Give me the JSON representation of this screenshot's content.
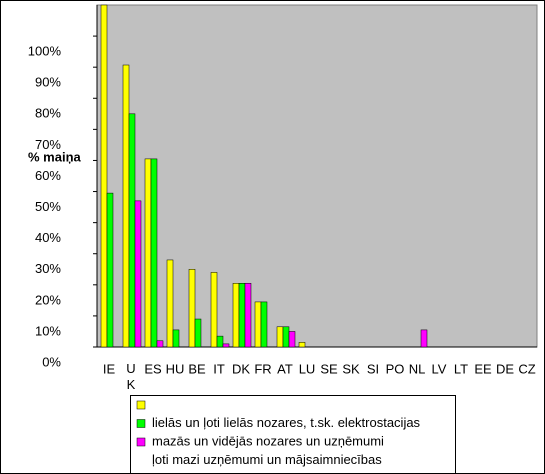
{
  "chart_data": {
    "type": "bar",
    "y_label": "% maiņa",
    "categories": [
      "IE",
      "U K",
      "ES",
      "HU",
      "BE",
      "IT",
      "DK",
      "FR",
      "AT",
      "LU",
      "SE",
      "SK",
      "SI",
      "PO",
      "NL",
      "LV",
      "LT",
      "EE",
      "DE",
      "CZ"
    ],
    "series": [
      {
        "name": null,
        "color": "#ffff00",
        "values": [
          110,
          90.7,
          60.5,
          28,
          25,
          24,
          20.5,
          14.5,
          6.5,
          1.5,
          null,
          null,
          null,
          null,
          null,
          null,
          null,
          null,
          null,
          null
        ]
      },
      {
        "name": "lielās un ļoti lielās nozares, t.sk. elektrostacijas",
        "color": "#00ff00",
        "values": [
          49.5,
          75,
          60.5,
          5.5,
          9,
          3.5,
          20.5,
          14.5,
          6.5,
          null,
          null,
          null,
          null,
          null,
          null,
          null,
          null,
          null,
          null,
          null
        ]
      },
      {
        "name": "mazās un vidējās nozares un uzņēmumi",
        "color": "#ff00ff",
        "values": [
          null,
          47,
          2,
          null,
          null,
          1,
          20.5,
          null,
          5,
          null,
          null,
          null,
          null,
          null,
          5.5,
          null,
          null,
          null,
          null,
          null
        ]
      }
    ],
    "legend_extra": "ļoti mazi uzņēmumi un mājsaimniecības",
    "ylim": [
      0,
      110
    ],
    "yticks": [
      {
        "value": 0,
        "label": "0%"
      },
      {
        "value": 10,
        "label": "10%"
      },
      {
        "value": 20,
        "label": "20%"
      },
      {
        "value": 30,
        "label": "30%"
      },
      {
        "value": 40,
        "label": "40%"
      },
      {
        "value": 50,
        "label": "50%"
      },
      {
        "value": 60,
        "label": "60%"
      },
      {
        "value": 70,
        "label": "70%"
      },
      {
        "value": 80,
        "label": "80%"
      },
      {
        "value": 90,
        "label": "90%"
      },
      {
        "value": 100,
        "label": "100%"
      }
    ],
    "plot_background": "#c0c0c0"
  }
}
